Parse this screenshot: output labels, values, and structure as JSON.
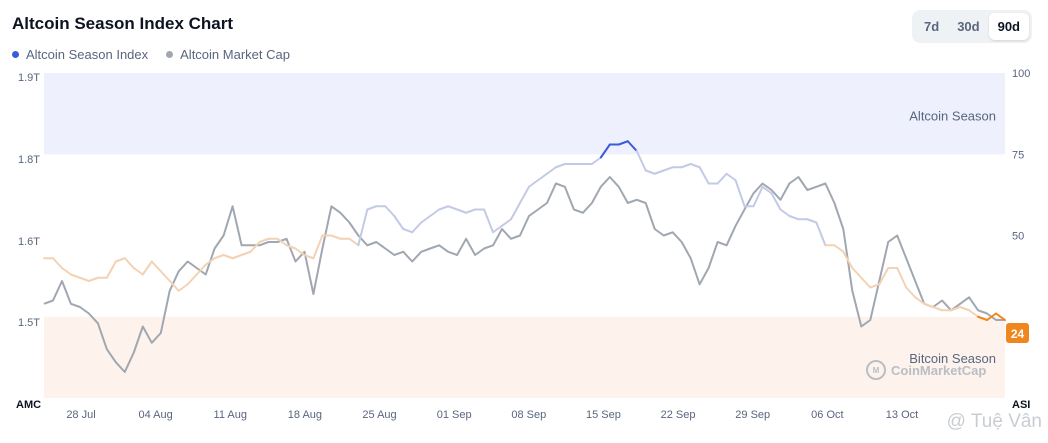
{
  "title": "Altcoin Season Index Chart",
  "legend": [
    {
      "label": "Altcoin Season Index",
      "color": "#3b5bdb"
    },
    {
      "label": "Altcoin Market Cap",
      "color": "#a0a7b1"
    }
  ],
  "range_tabs": [
    {
      "label": "7d",
      "active": false
    },
    {
      "label": "30d",
      "active": false
    },
    {
      "label": "90d",
      "active": true
    }
  ],
  "branding": {
    "cmc": "CoinMarketCap",
    "watermark": "@ Tuệ Vân"
  },
  "colors": {
    "altcoin_zone": "#eef0fd",
    "bitcoin_zone": "#fdf3ec",
    "current_badge": "#f0861e"
  },
  "chart_data": {
    "type": "line",
    "left_axis": {
      "label": "AMC",
      "ticks": [
        "1.9T",
        "1.8T",
        "1.6T",
        "1.5T"
      ]
    },
    "right_axis": {
      "label": "ASI",
      "ticks": [
        100,
        75,
        50
      ],
      "range": [
        0,
        100
      ]
    },
    "x_ticks": [
      "28 Jul",
      "04 Aug",
      "11 Aug",
      "18 Aug",
      "25 Aug",
      "01 Sep",
      "08 Sep",
      "15 Sep",
      "22 Sep",
      "29 Sep",
      "06 Oct",
      "13 Oct"
    ],
    "zones": [
      {
        "label": "Altcoin Season",
        "from": 75,
        "to": 100
      },
      {
        "label": "Bitcoin Season",
        "from": 0,
        "to": 25
      }
    ],
    "current_value": 24,
    "series": [
      {
        "name": "Altcoin Season Index",
        "values": [
          43,
          43,
          40,
          38,
          37,
          36,
          37,
          37,
          42,
          43,
          40,
          38,
          42,
          39,
          36,
          33,
          35,
          38,
          41,
          43,
          44,
          43,
          44,
          45,
          48,
          49,
          49,
          47,
          46,
          44,
          43,
          50,
          50,
          49,
          49,
          47,
          58,
          59,
          59,
          56,
          52,
          51,
          54,
          56,
          58,
          59,
          58,
          57,
          58,
          58,
          51,
          53,
          55,
          60,
          65,
          67,
          69,
          71,
          72,
          72,
          72,
          72,
          74,
          78,
          78,
          79,
          76,
          70,
          69,
          70,
          71,
          71,
          72,
          71,
          66,
          66,
          69,
          67,
          59,
          59,
          65,
          63,
          58,
          56,
          55,
          55,
          54,
          47,
          47,
          45,
          40,
          37,
          34,
          35,
          40,
          40,
          34,
          31,
          29,
          28,
          27,
          27,
          28,
          27,
          25,
          24,
          26,
          24
        ]
      },
      {
        "name": "Altcoin Market Cap",
        "values": [
          29,
          30,
          36,
          29,
          28,
          26,
          23,
          15,
          11,
          8,
          14,
          22,
          17,
          20,
          33,
          39,
          42,
          40,
          38,
          46,
          50,
          59,
          47,
          47,
          47,
          48,
          48,
          49,
          42,
          45,
          32,
          46,
          59,
          57,
          54,
          50,
          47,
          48,
          46,
          44,
          45,
          42,
          45,
          46,
          47,
          45,
          44,
          49,
          44,
          46,
          47,
          52,
          49,
          50,
          56,
          58,
          60,
          66,
          65,
          58,
          57,
          60,
          65,
          68,
          65,
          60,
          61,
          60,
          52,
          50,
          51,
          48,
          43,
          35,
          40,
          48,
          47,
          53,
          58,
          63,
          66,
          64,
          61,
          66,
          68,
          64,
          65,
          66,
          60,
          52,
          33,
          22,
          24,
          36,
          48,
          50,
          43,
          36,
          29,
          28,
          30,
          27,
          29,
          31,
          27,
          26,
          24,
          24
        ]
      }
    ]
  }
}
